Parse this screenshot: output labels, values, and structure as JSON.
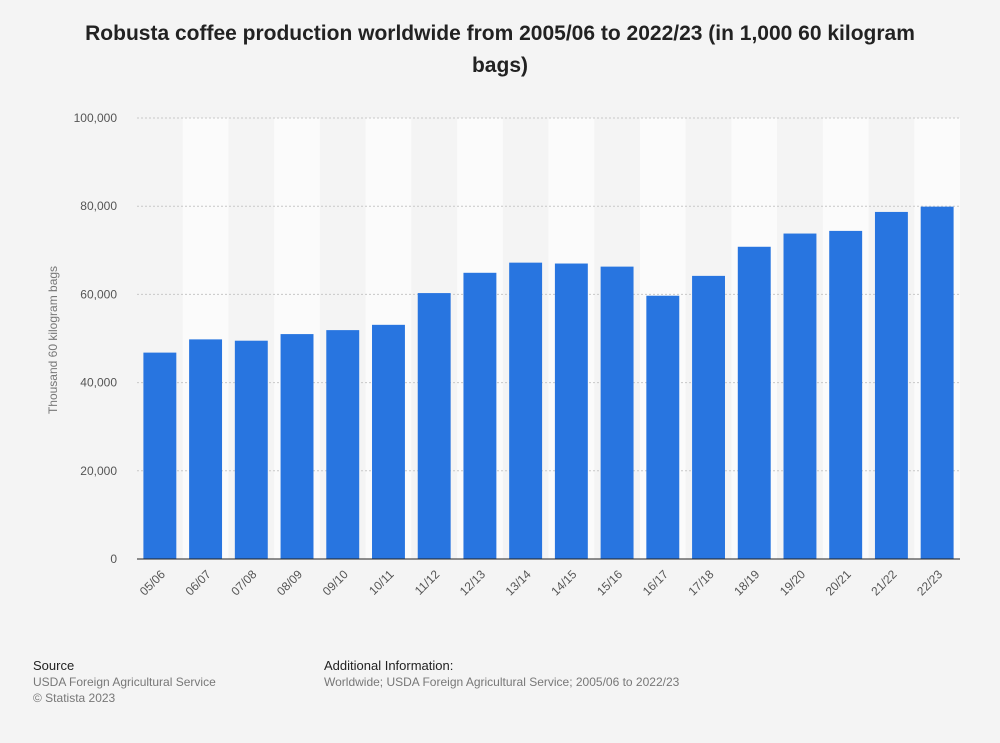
{
  "chart_data": {
    "type": "bar",
    "title": "Robusta coffee production worldwide from 2005/06 to 2022/23 (in 1,000 60 kilogram bags)",
    "xlabel": "",
    "ylabel": "Thousand 60 kilogram bags",
    "ylim": [
      0,
      100000
    ],
    "yticks": [
      0,
      20000,
      40000,
      60000,
      80000,
      100000
    ],
    "ytick_labels": [
      "0",
      "20,000",
      "40,000",
      "60,000",
      "80,000",
      "100,000"
    ],
    "categories": [
      "05/06",
      "06/07",
      "07/08",
      "08/09",
      "09/10",
      "10/11",
      "11/12",
      "12/13",
      "13/14",
      "14/15",
      "15/16",
      "16/17",
      "17/18",
      "18/19",
      "19/20",
      "20/21",
      "21/22",
      "22/23"
    ],
    "values": [
      46800,
      49800,
      49500,
      51000,
      51900,
      53100,
      60300,
      64900,
      67200,
      67000,
      66300,
      59700,
      64200,
      70800,
      73800,
      74400,
      78700,
      79900
    ],
    "grid": true,
    "colors": {
      "bar": "#2875e0",
      "band": "#fbfbfb",
      "background": "#f4f4f4",
      "grid": "#c8c8c8"
    }
  },
  "footer": {
    "source_heading": "Source",
    "source_line1": "USDA Foreign Agricultural Service",
    "source_line2": "© Statista 2023",
    "info_heading": "Additional Information:",
    "info_line": "Worldwide; USDA Foreign Agricultural Service; 2005/06 to 2022/23"
  }
}
